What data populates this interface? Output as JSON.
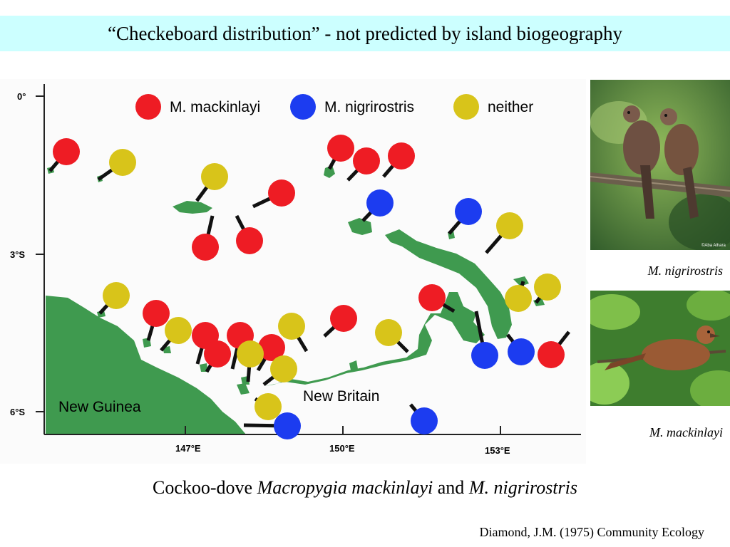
{
  "slide": {
    "title": "“Checkeboard distribution” - not predicted by island biogeography",
    "caption_prefix": "Cockoo-dove ",
    "caption_species1": "Macropygia mackinlayi",
    "caption_and": " and ",
    "caption_species2": "M. nigrirostris",
    "citation": "Diamond, J.M. (1975) Community Ecology"
  },
  "photos": {
    "top_caption": "M. nigrirostris",
    "bottom_caption": "M. mackinlayi",
    "watermark": "©Aba Alhara"
  },
  "map": {
    "legend": {
      "mackinlayi": "M. mackinlayi",
      "nigrirostris": "M. nigrirostris",
      "neither": "neither"
    },
    "axis": {
      "y_labels": [
        "0°",
        "3°S",
        "6°S"
      ],
      "x_labels": [
        "147°E",
        "150°E",
        "153°E"
      ]
    },
    "land_labels": {
      "new_guinea": "New Guinea",
      "new_britain": "New Britain"
    },
    "colors": {
      "mackinlayi": "#ee1c24",
      "nigrirostris": "#1c3cf0",
      "neither": "#d8c41a",
      "land": "#3f9a4f"
    },
    "dots": [
      {
        "species": "mackinlayi",
        "island": [
          70,
          240
        ]
      },
      {
        "species": "mackinlayi",
        "island": [
          298,
          303
        ]
      },
      {
        "species": "mackinlayi",
        "island": [
          332,
          303
        ]
      },
      {
        "species": "mackinlayi",
        "island": [
          355,
          290
        ]
      },
      {
        "species": "mackinlayi",
        "island": [
          462,
          237
        ]
      },
      {
        "species": "mackinlayi",
        "island": [
          488,
          253
        ]
      },
      {
        "species": "mackinlayi",
        "island": [
          538,
          248
        ]
      },
      {
        "species": "mackinlayi",
        "island": [
          208,
          478
        ]
      },
      {
        "species": "mackinlayi",
        "island": [
          277,
          511
        ]
      },
      {
        "species": "mackinlayi",
        "island": [
          290,
          522
        ]
      },
      {
        "species": "mackinlayi",
        "island": [
          326,
          518
        ]
      },
      {
        "species": "mackinlayi",
        "island": [
          362,
          520
        ]
      },
      {
        "species": "mackinlayi",
        "island": [
          455,
          472
        ]
      },
      {
        "species": "mackinlayi",
        "island": [
          637,
          437
        ]
      },
      {
        "species": "mackinlayi",
        "island": [
          798,
          466
        ]
      },
      {
        "species": "nigrirostris",
        "island": [
          509,
          310
        ]
      },
      {
        "species": "nigrirostris",
        "island": [
          630,
          328
        ]
      },
      {
        "species": "nigrirostris",
        "island": [
          668,
          437
        ]
      },
      {
        "species": "nigrirostris",
        "island": [
          712,
          470
        ]
      },
      {
        "species": "nigrirostris",
        "island": [
          576,
          568
        ]
      },
      {
        "species": "nigrirostris",
        "island": [
          342,
          597
        ]
      },
      {
        "species": "neither",
        "island": [
          138,
          252
        ]
      },
      {
        "species": "neither",
        "island": [
          276,
          282
        ]
      },
      {
        "species": "neither",
        "island": [
          682,
          355
        ]
      },
      {
        "species": "neither",
        "island": [
          140,
          440
        ]
      },
      {
        "species": "neither",
        "island": [
          226,
          492
        ]
      },
      {
        "species": "neither",
        "island": [
          348,
          536
        ]
      },
      {
        "species": "neither",
        "island": [
          430,
          493
        ]
      },
      {
        "species": "neither",
        "island": [
          572,
          494
        ]
      },
      {
        "species": "neither",
        "island": [
          370,
          540
        ]
      },
      {
        "species": "neither",
        "island": [
          358,
          560
        ]
      },
      {
        "species": "neither",
        "island": [
          734,
          395
        ]
      },
      {
        "species": "neither",
        "island": [
          752,
          425
        ]
      }
    ]
  }
}
